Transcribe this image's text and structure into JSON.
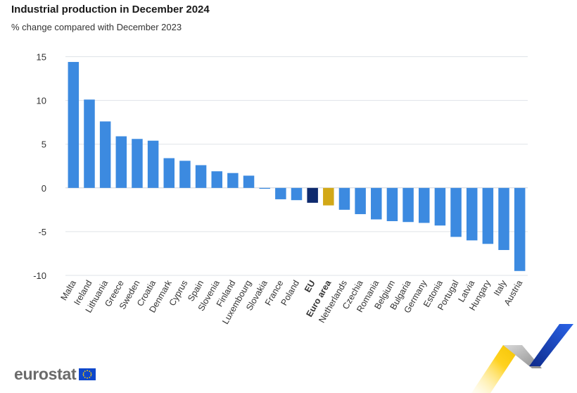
{
  "header": {
    "title": "Industrial production in December 2024",
    "subtitle": "% change compared with December 2023"
  },
  "brand": {
    "logo_text": "eurostat",
    "logo_icon": "eu-flag-icon"
  },
  "colors": {
    "country": "#3c8ae0",
    "eu": "#0e2a6e",
    "euro_area": "#d2a817",
    "grid": "#dfe3e8",
    "text": "#333333"
  },
  "chart_data": {
    "type": "bar",
    "title": "Industrial production in December 2024",
    "subtitle": "% change compared with December 2023",
    "ylim": [
      -10,
      15
    ],
    "yticks": [
      15,
      10,
      5,
      0,
      -5,
      -10
    ],
    "grid": true,
    "categories": [
      "Malta",
      "Ireland",
      "Lithuania",
      "Greece",
      "Sweden",
      "Croatia",
      "Denmark",
      "Cyprus",
      "Spain",
      "Slovenia",
      "Finland",
      "Luxembourg",
      "Slovakia",
      "France",
      "Poland",
      "EU",
      "Euro area",
      "Netherlands",
      "Czechia",
      "Romania",
      "Belgium",
      "Bulgaria",
      "Germany",
      "Estonia",
      "Portugal",
      "Latvia",
      "Hungary",
      "Italy",
      "Austria"
    ],
    "values": [
      14.4,
      10.1,
      7.6,
      5.9,
      5.6,
      5.4,
      3.4,
      3.1,
      2.6,
      1.9,
      1.7,
      1.4,
      -0.1,
      -1.3,
      -1.4,
      -1.7,
      -2.0,
      -2.5,
      -3.0,
      -3.6,
      -3.8,
      -3.9,
      -4.0,
      -4.3,
      -5.6,
      -6.0,
      -6.4,
      -7.1,
      -9.5
    ],
    "highlight": {
      "EU": "eu",
      "Euro area": "euro_area"
    }
  }
}
